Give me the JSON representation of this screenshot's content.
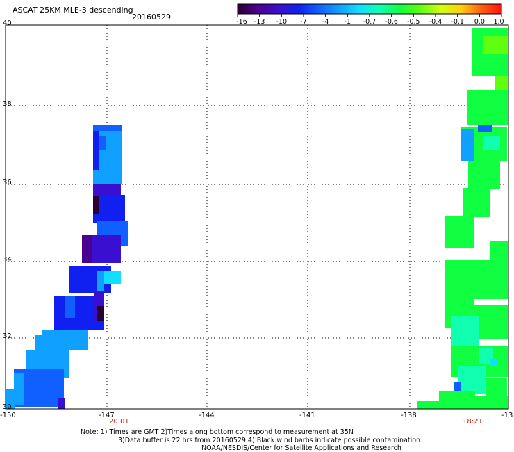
{
  "header": {
    "title": "ASCAT 25KM MLE-3 descending",
    "date": "20160529"
  },
  "colorbar": {
    "ticks": [
      "-16",
      "-13",
      "-10",
      "-7",
      "-4",
      "-1",
      "-0.7",
      "-0.6",
      "-0.5",
      "-0.4",
      "-0.1",
      "0.0",
      "1.0"
    ],
    "colors": [
      "#2a0030",
      "#4a0090",
      "#3a10d0",
      "#1020f0",
      "#1060ff",
      "#10a0ff",
      "#10e0ff",
      "#10ffb0",
      "#10ff40",
      "#60ff10",
      "#d0ff10",
      "#ffd010",
      "#ff6010",
      "#ff1010"
    ]
  },
  "map": {
    "lat_labels": [
      "40",
      "38",
      "36",
      "34",
      "32",
      "30"
    ],
    "lon_labels": [
      "-150",
      "-147",
      "-144",
      "-141",
      "-138",
      "-13"
    ],
    "pass_times": [
      "20:01",
      "18:21"
    ]
  },
  "note": {
    "line1": "Note: 1) Times are GMT 2)Times along bottom correspond to measurement at 35N",
    "line2": "3)Data buffer is 22 hrs from 20160529 4) Black wind barbs indicate possible contamination",
    "line3": "NOAA/NESDIS/Center for Satellite Applications and Research"
  }
}
